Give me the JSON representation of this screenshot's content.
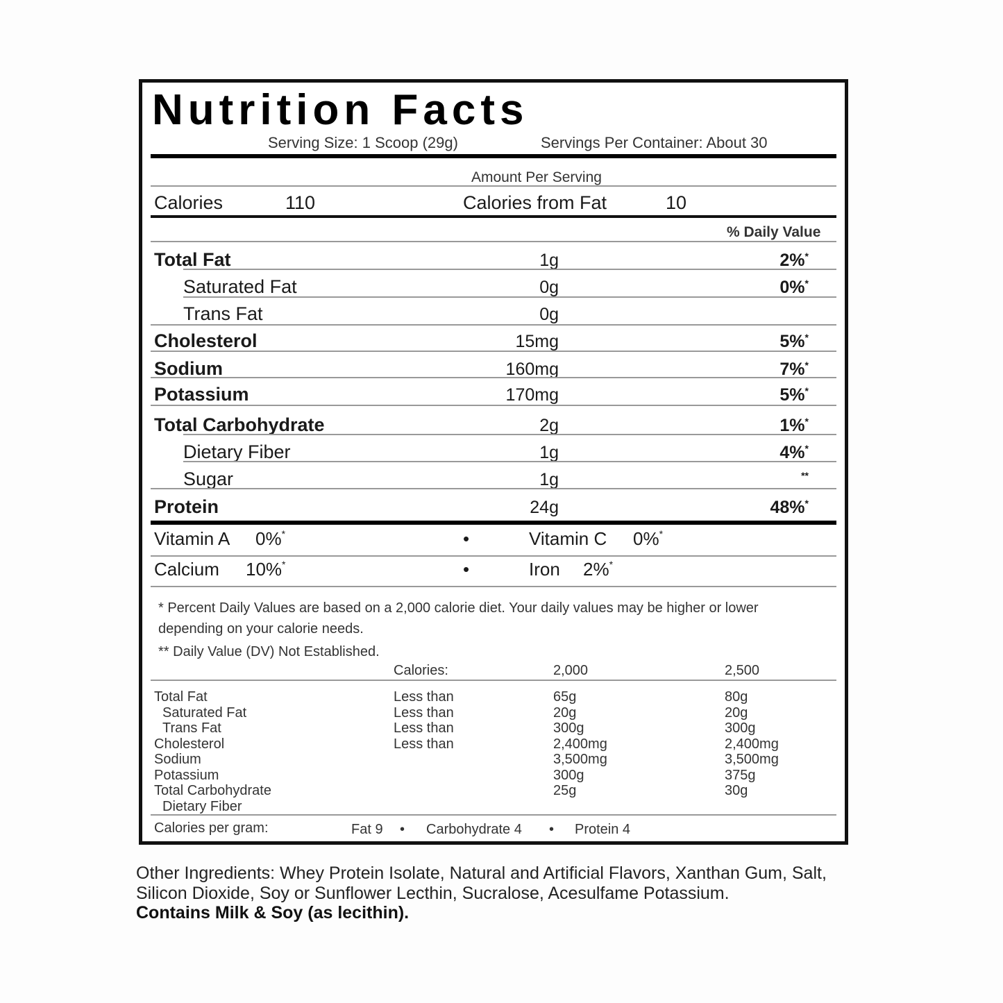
{
  "title": "Nutrition Facts",
  "serving_size": "Serving Size: 1 Scoop (29g)",
  "servings_per_container": "Servings Per Container: About 30",
  "amount_per_serving": "Amount Per Serving",
  "calories": {
    "label": "Calories",
    "value": "110",
    "from_fat_label": "Calories from Fat",
    "from_fat_value": "10"
  },
  "daily_value_header": "% Daily Value",
  "nutrients": [
    {
      "label": "Total Fat",
      "amount": "1g",
      "dv": "2%",
      "mark": "*",
      "bold": true,
      "indent": false
    },
    {
      "label": "Saturated Fat",
      "amount": "0g",
      "dv": "0%",
      "mark": "*",
      "bold": false,
      "indent": true
    },
    {
      "label": "Trans Fat",
      "amount": "0g",
      "dv": "",
      "mark": "",
      "bold": false,
      "indent": true
    },
    {
      "label": "Cholesterol",
      "amount": "15mg",
      "dv": "5%",
      "mark": "*",
      "bold": true,
      "indent": false
    },
    {
      "label": "Sodium",
      "amount": "160mg",
      "dv": "7%",
      "mark": "*",
      "bold": true,
      "indent": false
    },
    {
      "label": "Potassium",
      "amount": "170mg",
      "dv": "5%",
      "mark": "*",
      "bold": true,
      "indent": false
    },
    {
      "label": "Total Carbohydrate",
      "amount": "2g",
      "dv": "1%",
      "mark": "*",
      "bold": true,
      "indent": false
    },
    {
      "label": "Dietary Fiber",
      "amount": "1g",
      "dv": "4%",
      "mark": "*",
      "bold": false,
      "indent": true
    },
    {
      "label": "Sugar",
      "amount": "1g",
      "dv": "",
      "mark": "**",
      "bold": false,
      "indent": true
    },
    {
      "label": "Protein",
      "amount": "24g",
      "dv": "48%",
      "mark": "*",
      "bold": true,
      "indent": false
    }
  ],
  "vitamins": [
    {
      "label": "Vitamin A",
      "value": "0%",
      "mark": "*",
      "label2": "Vitamin C",
      "value2": "0%",
      "mark2": "*",
      "bullet": "•"
    },
    {
      "label": "Calcium",
      "value": "10%",
      "mark": "*",
      "label2": "Iron",
      "value2": "2%",
      "mark2": "*",
      "bullet": "•"
    }
  ],
  "footnote": {
    "line1": "* Percent Daily Values are based on a 2,000 calorie diet. Your daily values may be higher or lower",
    "line2": "depending on your calorie needs.",
    "line3": "** Daily Value (DV) Not Established."
  },
  "reference_table": {
    "header": {
      "calories_label": "Calories:",
      "col1": "2,000",
      "col2": "2,500"
    },
    "rows": [
      {
        "name": "Total Fat",
        "qualifier": "Less than",
        "v1": "65g",
        "v2": "80g",
        "indent": false
      },
      {
        "name": "Saturated Fat",
        "qualifier": "Less than",
        "v1": "20g",
        "v2": "20g",
        "indent": true
      },
      {
        "name": "Trans Fat",
        "qualifier": "Less than",
        "v1": "300g",
        "v2": "300g",
        "indent": true
      },
      {
        "name": "Cholesterol",
        "qualifier": "Less than",
        "v1": "2,400mg",
        "v2": "2,400mg",
        "indent": false
      },
      {
        "name": "Sodium",
        "qualifier": "",
        "v1": "3,500mg",
        "v2": "3,500mg",
        "indent": false
      },
      {
        "name": "Potassium",
        "qualifier": "",
        "v1": "300g",
        "v2": "375g",
        "indent": false
      },
      {
        "name": "Total Carbohydrate",
        "qualifier": "",
        "v1": "25g",
        "v2": "30g",
        "indent": false
      },
      {
        "name": "Dietary Fiber",
        "qualifier": "",
        "v1": "",
        "v2": "",
        "indent": true
      }
    ]
  },
  "calories_per_gram": {
    "label": "Calories per gram:",
    "fat": "Fat 9",
    "carb": "Carbohydrate 4",
    "protein": "Protein 4",
    "bullet": "•"
  },
  "ingredients": {
    "text": "Other Ingredients: Whey Protein Isolate, Natural and Artificial Flavors, Xanthan Gum, Salt, Silicon Dioxide, Soy or Sunflower Lecthin, Sucralose, Acesulfame Potassium.",
    "allergen": "Contains Milk & Soy (as lecithin)."
  }
}
